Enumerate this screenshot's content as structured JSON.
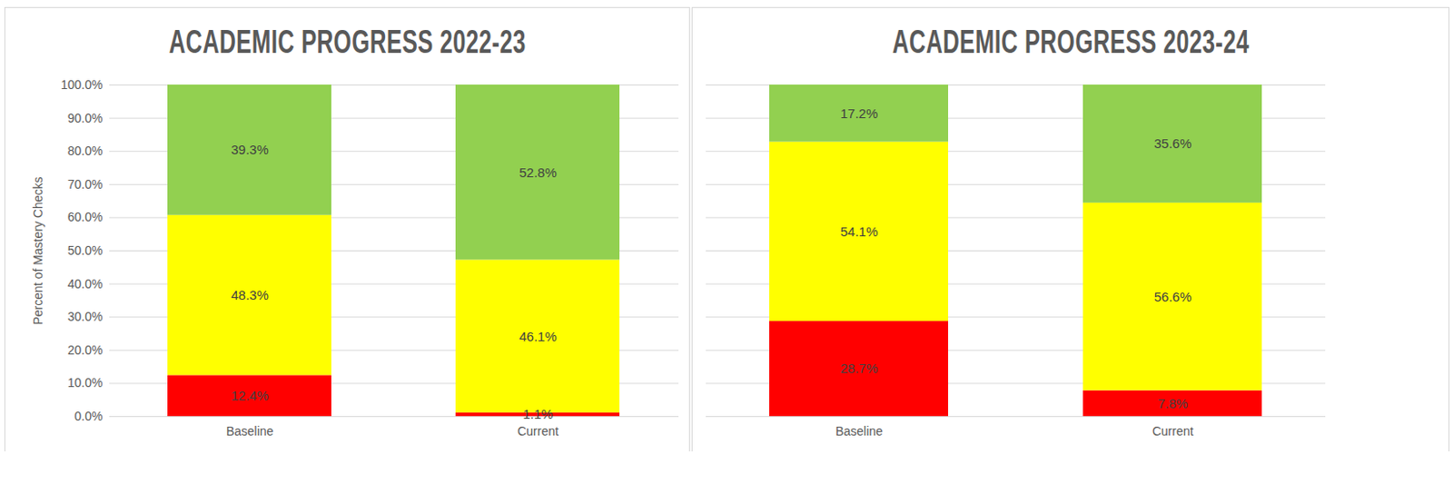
{
  "chart_data": [
    {
      "type": "bar",
      "title": "ACADEMIC PROGRESS 2022-23",
      "ylabel": "Percent of Mastery Checks",
      "categories": [
        "Baseline",
        "Current"
      ],
      "series": [
        {
          "color": "#ff0000",
          "values": [
            12.4,
            1.1
          ],
          "value_labels": [
            "12.4%",
            "1.1%"
          ]
        },
        {
          "color": "#ffff00",
          "values": [
            48.3,
            46.1
          ],
          "value_labels": [
            "48.3%",
            "46.1%"
          ]
        },
        {
          "color": "#92d050",
          "values": [
            39.3,
            52.8
          ],
          "value_labels": [
            "39.3%",
            "52.8%"
          ]
        }
      ],
      "stacked": true,
      "data_labels": true,
      "grid": true,
      "ylim": [
        0,
        100
      ],
      "yticks": [
        {
          "value": 0,
          "label": "0.0%"
        },
        {
          "value": 10,
          "label": "10.0%"
        },
        {
          "value": 20,
          "label": "20.0%"
        },
        {
          "value": 30,
          "label": "30.0%"
        },
        {
          "value": 40,
          "label": "40.0%"
        },
        {
          "value": 50,
          "label": "50.0%"
        },
        {
          "value": 60,
          "label": "60.0%"
        },
        {
          "value": 70,
          "label": "70.0%"
        },
        {
          "value": 80,
          "label": "80.0%"
        },
        {
          "value": 90,
          "label": "90.0%"
        },
        {
          "value": 100,
          "label": "100.0%"
        }
      ]
    },
    {
      "type": "bar",
      "title": "ACADEMIC PROGRESS 2023-24",
      "categories": [
        "Baseline",
        "Current"
      ],
      "series": [
        {
          "color": "#ff0000",
          "values": [
            28.7,
            7.8
          ],
          "value_labels": [
            "28.7%",
            "7.8%"
          ]
        },
        {
          "color": "#ffff00",
          "values": [
            54.1,
            56.6
          ],
          "value_labels": [
            "54.1%",
            "56.6%"
          ]
        },
        {
          "color": "#92d050",
          "values": [
            17.2,
            35.6
          ],
          "value_labels": [
            "17.2%",
            "35.6%"
          ]
        }
      ],
      "stacked": true,
      "data_labels": true,
      "grid": true,
      "tick_labels": "x",
      "ylim": [
        0,
        100
      ],
      "yticks": [
        0,
        10,
        20,
        30,
        40,
        50,
        60,
        70,
        80,
        90,
        100
      ]
    }
  ]
}
